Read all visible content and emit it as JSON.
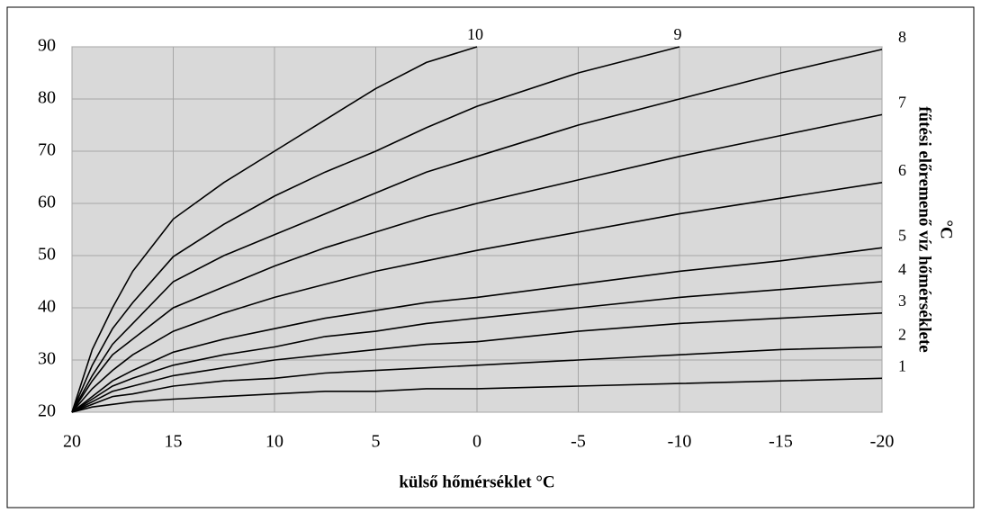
{
  "chart_data": {
    "type": "line",
    "x_label": "külső hőmérséklet °C",
    "y_label": [
      "fűtési előremenő víz hőmérséklete",
      "°C"
    ],
    "x": [
      20,
      19,
      18,
      17,
      15,
      12.5,
      10,
      7.5,
      5,
      2.5,
      0,
      -5,
      -10,
      -15,
      -20
    ],
    "xlim": [
      20,
      -20
    ],
    "xticks": [
      20,
      15,
      10,
      5,
      0,
      -5,
      -10,
      -15,
      -20
    ],
    "ylim": [
      20,
      90
    ],
    "yticks": [
      20,
      30,
      40,
      50,
      60,
      70,
      80,
      90
    ],
    "grid": true,
    "series": [
      {
        "name": "1",
        "color": "#000000",
        "values": [
          20,
          21,
          21.5,
          22,
          22.5,
          23,
          23.5,
          24,
          24,
          24.5,
          24.5,
          25,
          25.5,
          26,
          26.5
        ]
      },
      {
        "name": "2",
        "color": "#000000",
        "values": [
          20,
          21.5,
          23,
          23.5,
          25,
          26,
          26.5,
          27.5,
          28,
          28.5,
          29,
          30,
          31,
          32,
          32.5
        ]
      },
      {
        "name": "3",
        "color": "#000000",
        "values": [
          20,
          22,
          24,
          25,
          27,
          28.5,
          30,
          31,
          32,
          33,
          33.5,
          35.5,
          37,
          38,
          39
        ]
      },
      {
        "name": "4",
        "color": "#000000",
        "values": [
          20,
          22.5,
          25,
          26.5,
          29,
          31,
          32.5,
          34.5,
          35.5,
          37,
          38,
          40,
          42,
          43.5,
          45
        ]
      },
      {
        "name": "5",
        "color": "#000000",
        "values": [
          20,
          23,
          26,
          28,
          31.5,
          34,
          36,
          38,
          39.5,
          41,
          42,
          44.5,
          47,
          49,
          51.5
        ]
      },
      {
        "name": "6",
        "color": "#000000",
        "values": [
          20,
          24.5,
          28,
          31,
          35.5,
          39,
          42,
          44.5,
          47,
          49,
          51,
          54.5,
          58,
          61,
          64
        ]
      },
      {
        "name": "7",
        "color": "#000000",
        "values": [
          20,
          26,
          31,
          34,
          40,
          44,
          48,
          51.5,
          54.5,
          57.5,
          60,
          64.5,
          69,
          73,
          77
        ]
      },
      {
        "name": "8",
        "color": "#000000",
        "values": [
          20,
          27,
          33,
          37,
          45,
          50,
          54,
          58,
          62,
          66,
          69,
          75,
          80,
          85,
          89.5
        ]
      },
      {
        "name": "9",
        "color": "#000000",
        "values": [
          20,
          29,
          36,
          41,
          49.8,
          56,
          61.4,
          66,
          70,
          74.5,
          78.6,
          85,
          90,
          null,
          null
        ]
      },
      {
        "name": "10",
        "color": "#000000",
        "values": [
          20,
          32,
          40,
          47,
          57,
          64,
          70,
          76,
          82,
          87,
          90,
          null,
          null,
          null,
          null
        ]
      }
    ]
  }
}
